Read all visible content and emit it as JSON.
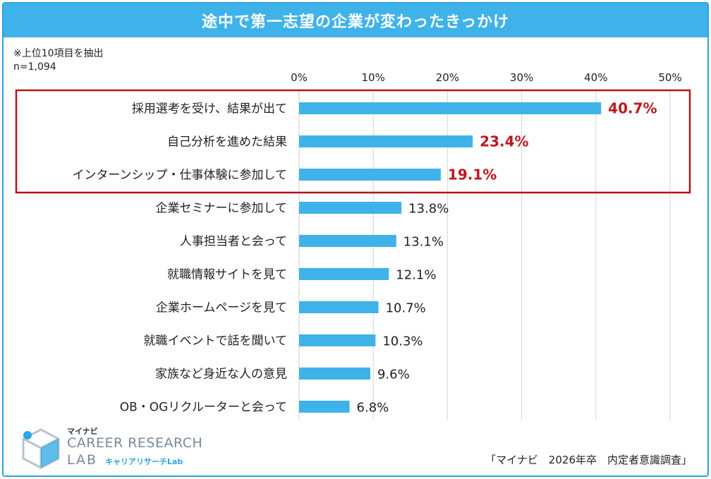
{
  "title": "途中で第一志望の企業が変わったきっかけ",
  "notes": {
    "top10": "※上位10項目を抽出",
    "n": "n=1,094"
  },
  "source": "「マイナビ　2026年卒　内定者意識調査」",
  "logo": {
    "brand": "マイナビ",
    "line1": "CAREER RESEARCH",
    "line2": "LAB",
    "jp": "キャリアリサーチLab"
  },
  "colors": {
    "bar": "#3fb2ea",
    "highlight_text": "#c0171e",
    "highlight_box": "#b5121b",
    "grid": "#d6d6d6",
    "frame": "#29a3e0"
  },
  "chart_data": {
    "type": "bar",
    "orientation": "horizontal",
    "categories": [
      "採用選考を受け、結果が出て",
      "自己分析を進めた結果",
      "インターンシップ・仕事体験に参加して",
      "企業セミナーに参加して",
      "人事担当者と会って",
      "就職情報サイトを見て",
      "企業ホームページを見て",
      "就職イベントで話を聞いて",
      "家族など身近な人の意見",
      "OB・OGリクルーターと会って"
    ],
    "values": [
      40.7,
      23.4,
      19.1,
      13.8,
      13.1,
      12.1,
      10.7,
      10.3,
      9.6,
      6.8
    ],
    "value_labels": [
      "40.7%",
      "23.4%",
      "19.1%",
      "13.8%",
      "13.1%",
      "12.1%",
      "10.7%",
      "10.3%",
      "9.6%",
      "6.8%"
    ],
    "highlighted": [
      0,
      1,
      2
    ],
    "xlim": [
      0,
      50
    ],
    "xticks": [
      0,
      10,
      20,
      30,
      40,
      50
    ],
    "xtick_labels": [
      "0%",
      "10%",
      "20%",
      "30%",
      "40%",
      "50%"
    ],
    "axis_position": "top",
    "grid": true
  }
}
